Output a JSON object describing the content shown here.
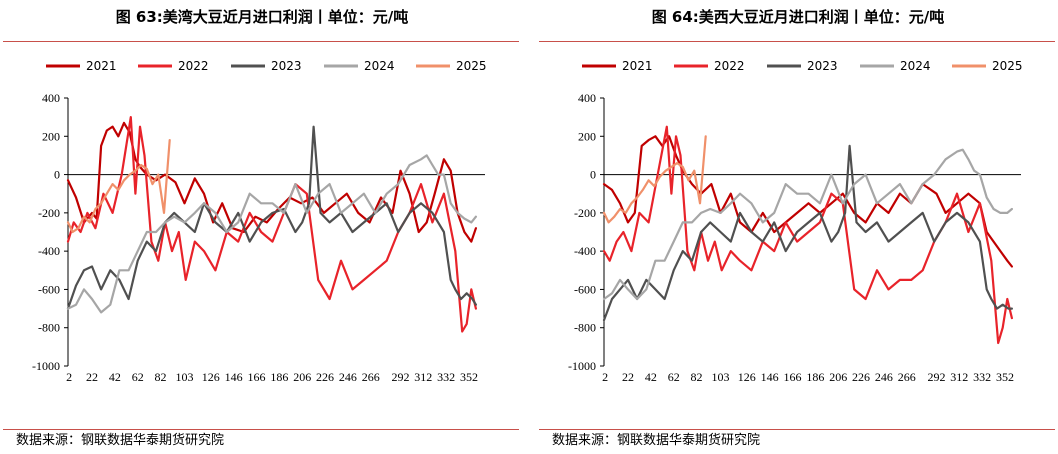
{
  "colors": {
    "2021": "#c00000",
    "2022": "#e8232a",
    "2023": "#505050",
    "2024": "#a6a6a6",
    "2025": "#f0906a",
    "rule": "#c8504a"
  },
  "source_text": "数据来源：钢联数据华泰期货研究院",
  "chart_data": [
    {
      "type": "line",
      "title": "图 63:美湾大豆近月进口利润丨单位：元/吨",
      "xlabel": "",
      "ylabel": "",
      "ylim": [
        -1000,
        400
      ],
      "yticks": [
        400,
        200,
        0,
        -200,
        -400,
        -600,
        -800,
        -1000
      ],
      "xticks": [
        2,
        22,
        42,
        62,
        82,
        103,
        126,
        146,
        166,
        186,
        206,
        226,
        246,
        266,
        292,
        312,
        332,
        352
      ],
      "xlim": [
        1,
        366
      ],
      "legend": [
        "2021",
        "2022",
        "2023",
        "2024",
        "2025"
      ],
      "series": [
        {
          "name": "2021",
          "x": [
            1,
            8,
            15,
            22,
            26,
            30,
            35,
            40,
            45,
            50,
            55,
            60,
            64,
            70,
            78,
            86,
            95,
            103,
            112,
            120,
            128,
            136,
            145,
            155,
            165,
            175,
            185,
            195,
            205,
            215,
            225,
            235,
            245,
            255,
            265,
            275,
            285,
            292,
            300,
            308,
            315,
            322,
            330,
            336,
            342,
            348,
            354,
            358
          ],
          "values": [
            -30,
            -120,
            -250,
            -200,
            -230,
            150,
            230,
            250,
            200,
            270,
            220,
            80,
            40,
            0,
            -30,
            0,
            -40,
            -150,
            -20,
            -100,
            -250,
            -150,
            -280,
            -300,
            -220,
            -250,
            -180,
            -120,
            -150,
            -120,
            -200,
            -150,
            -100,
            -200,
            -250,
            -120,
            -200,
            20,
            -100,
            -300,
            -250,
            -100,
            80,
            20,
            -200,
            -300,
            -350,
            -280
          ]
        },
        {
          "name": "2022",
          "x": [
            1,
            6,
            12,
            18,
            25,
            32,
            40,
            48,
            56,
            60,
            64,
            68,
            74,
            80,
            86,
            92,
            98,
            104,
            112,
            120,
            130,
            140,
            150,
            160,
            170,
            180,
            190,
            200,
            210,
            220,
            230,
            240,
            250,
            260,
            270,
            280,
            290,
            300,
            310,
            320,
            330,
            340,
            346,
            350,
            354,
            358
          ],
          "values": [
            -350,
            -250,
            -300,
            -200,
            -280,
            -100,
            -200,
            0,
            300,
            -100,
            250,
            100,
            -350,
            -450,
            -250,
            -400,
            -300,
            -550,
            -350,
            -400,
            -500,
            -300,
            -350,
            -200,
            -300,
            -350,
            -200,
            -50,
            -100,
            -550,
            -650,
            -450,
            -600,
            -550,
            -500,
            -450,
            -300,
            -200,
            -50,
            -250,
            -100,
            -400,
            -820,
            -780,
            -600,
            -700
          ]
        },
        {
          "name": "2023",
          "x": [
            1,
            8,
            15,
            22,
            30,
            38,
            46,
            54,
            62,
            70,
            78,
            86,
            94,
            103,
            112,
            120,
            130,
            140,
            150,
            160,
            170,
            180,
            190,
            200,
            206,
            212,
            216,
            222,
            230,
            240,
            250,
            260,
            270,
            280,
            290,
            300,
            310,
            320,
            330,
            336,
            340,
            345,
            350,
            355,
            358
          ],
          "values": [
            -700,
            -580,
            -500,
            -480,
            -600,
            -500,
            -550,
            -650,
            -450,
            -350,
            -400,
            -250,
            -200,
            -250,
            -300,
            -150,
            -250,
            -300,
            -200,
            -350,
            -250,
            -200,
            -180,
            -300,
            -250,
            -150,
            250,
            -200,
            -250,
            -200,
            -300,
            -250,
            -200,
            -150,
            -300,
            -200,
            -150,
            -200,
            -300,
            -550,
            -600,
            -650,
            -620,
            -650,
            -680
          ]
        },
        {
          "name": "2024",
          "x": [
            1,
            8,
            15,
            22,
            30,
            38,
            46,
            54,
            62,
            70,
            78,
            86,
            94,
            103,
            112,
            120,
            130,
            140,
            150,
            160,
            170,
            180,
            190,
            200,
            210,
            220,
            230,
            240,
            250,
            260,
            270,
            280,
            290,
            300,
            310,
            315,
            320,
            325,
            330,
            336,
            342,
            348,
            354,
            358
          ],
          "values": [
            -700,
            -680,
            -600,
            -650,
            -720,
            -680,
            -500,
            -500,
            -400,
            -300,
            -300,
            -250,
            -220,
            -250,
            -200,
            -150,
            -200,
            -300,
            -250,
            -100,
            -150,
            -150,
            -200,
            -50,
            -200,
            -100,
            -50,
            -200,
            -150,
            -100,
            -200,
            -100,
            -50,
            50,
            80,
            100,
            50,
            0,
            0,
            -150,
            -200,
            -230,
            -250,
            -220
          ]
        },
        {
          "name": "2025",
          "x": [
            1,
            5,
            10,
            15,
            20,
            25,
            30,
            35,
            40,
            45,
            50,
            55,
            60,
            65,
            70,
            75,
            80,
            85,
            90
          ],
          "values": [
            -250,
            -300,
            -280,
            -220,
            -250,
            -180,
            -150,
            -100,
            -50,
            -80,
            -30,
            0,
            20,
            50,
            30,
            -50,
            0,
            -200,
            180
          ]
        }
      ]
    },
    {
      "type": "line",
      "title": "图 64:美西大豆近月进口利润丨单位：元/吨",
      "xlabel": "",
      "ylabel": "",
      "ylim": [
        -1000,
        400
      ],
      "yticks": [
        400,
        200,
        0,
        -200,
        -400,
        -600,
        -800,
        -1000
      ],
      "xticks": [
        2,
        22,
        42,
        62,
        82,
        103,
        126,
        146,
        166,
        186,
        206,
        226,
        246,
        266,
        292,
        312,
        332,
        352
      ],
      "xlim": [
        1,
        366
      ],
      "legend": [
        "2021",
        "2022",
        "2023",
        "2024",
        "2025"
      ],
      "series": [
        {
          "name": "2021",
          "x": [
            1,
            8,
            15,
            22,
            28,
            34,
            40,
            46,
            52,
            58,
            64,
            70,
            78,
            86,
            95,
            103,
            112,
            120,
            130,
            140,
            150,
            160,
            170,
            180,
            190,
            200,
            210,
            220,
            230,
            240,
            250,
            260,
            270,
            280,
            292,
            300,
            310,
            320,
            330,
            336,
            342,
            348,
            354,
            358
          ],
          "values": [
            -50,
            -80,
            -150,
            -250,
            -200,
            150,
            180,
            200,
            150,
            200,
            100,
            20,
            -50,
            -100,
            -50,
            -200,
            -100,
            -250,
            -300,
            -200,
            -300,
            -250,
            -200,
            -150,
            -200,
            -150,
            -100,
            -200,
            -250,
            -150,
            -200,
            -100,
            -150,
            -50,
            -100,
            -200,
            -150,
            -100,
            -150,
            -300,
            -350,
            -400,
            -450,
            -480
          ]
        },
        {
          "name": "2022",
          "x": [
            1,
            6,
            12,
            18,
            25,
            32,
            40,
            48,
            56,
            60,
            64,
            68,
            74,
            80,
            86,
            92,
            98,
            104,
            112,
            120,
            130,
            140,
            150,
            160,
            170,
            180,
            190,
            200,
            210,
            220,
            230,
            240,
            250,
            260,
            270,
            280,
            290,
            300,
            310,
            320,
            330,
            340,
            346,
            350,
            354,
            358
          ],
          "values": [
            -400,
            -450,
            -350,
            -300,
            -400,
            -200,
            -250,
            0,
            250,
            -100,
            200,
            100,
            -400,
            -500,
            -300,
            -450,
            -350,
            -500,
            -400,
            -450,
            -500,
            -350,
            -400,
            -250,
            -350,
            -300,
            -250,
            -100,
            -150,
            -600,
            -650,
            -500,
            -600,
            -550,
            -550,
            -500,
            -350,
            -250,
            -100,
            -300,
            -150,
            -450,
            -880,
            -800,
            -650,
            -750
          ]
        },
        {
          "name": "2023",
          "x": [
            1,
            8,
            15,
            22,
            30,
            38,
            46,
            54,
            62,
            70,
            78,
            86,
            94,
            103,
            112,
            120,
            130,
            140,
            150,
            160,
            170,
            180,
            190,
            200,
            206,
            212,
            216,
            222,
            230,
            240,
            250,
            260,
            270,
            280,
            290,
            300,
            310,
            320,
            330,
            336,
            340,
            345,
            350,
            355,
            358
          ],
          "values": [
            -760,
            -650,
            -600,
            -550,
            -650,
            -550,
            -600,
            -650,
            -500,
            -400,
            -450,
            -300,
            -250,
            -300,
            -350,
            -200,
            -300,
            -350,
            -250,
            -400,
            -300,
            -250,
            -200,
            -350,
            -300,
            -200,
            150,
            -250,
            -300,
            -250,
            -350,
            -300,
            -250,
            -200,
            -350,
            -250,
            -200,
            -250,
            -350,
            -600,
            -650,
            -700,
            -680,
            -700,
            -700
          ]
        },
        {
          "name": "2024",
          "x": [
            1,
            8,
            15,
            22,
            30,
            38,
            46,
            54,
            62,
            70,
            78,
            86,
            94,
            103,
            112,
            120,
            130,
            140,
            150,
            160,
            170,
            180,
            190,
            200,
            210,
            220,
            230,
            240,
            250,
            260,
            270,
            280,
            290,
            300,
            310,
            315,
            320,
            325,
            330,
            336,
            342,
            348,
            354,
            358
          ],
          "values": [
            -650,
            -620,
            -550,
            -600,
            -650,
            -600,
            -450,
            -450,
            -350,
            -250,
            -250,
            -200,
            -180,
            -200,
            -150,
            -100,
            -150,
            -250,
            -200,
            -50,
            -100,
            -100,
            -150,
            0,
            -150,
            -50,
            0,
            -150,
            -100,
            -50,
            -150,
            -50,
            0,
            80,
            120,
            130,
            80,
            20,
            0,
            -120,
            -180,
            -200,
            -200,
            -180
          ]
        },
        {
          "name": "2025",
          "x": [
            1,
            5,
            10,
            15,
            20,
            25,
            30,
            35,
            40,
            45,
            50,
            55,
            60,
            65,
            70,
            75,
            80,
            85,
            90
          ],
          "values": [
            -200,
            -250,
            -220,
            -180,
            -200,
            -150,
            -120,
            -80,
            -30,
            -60,
            -10,
            20,
            40,
            60,
            40,
            -30,
            20,
            -150,
            200
          ]
        }
      ]
    }
  ]
}
